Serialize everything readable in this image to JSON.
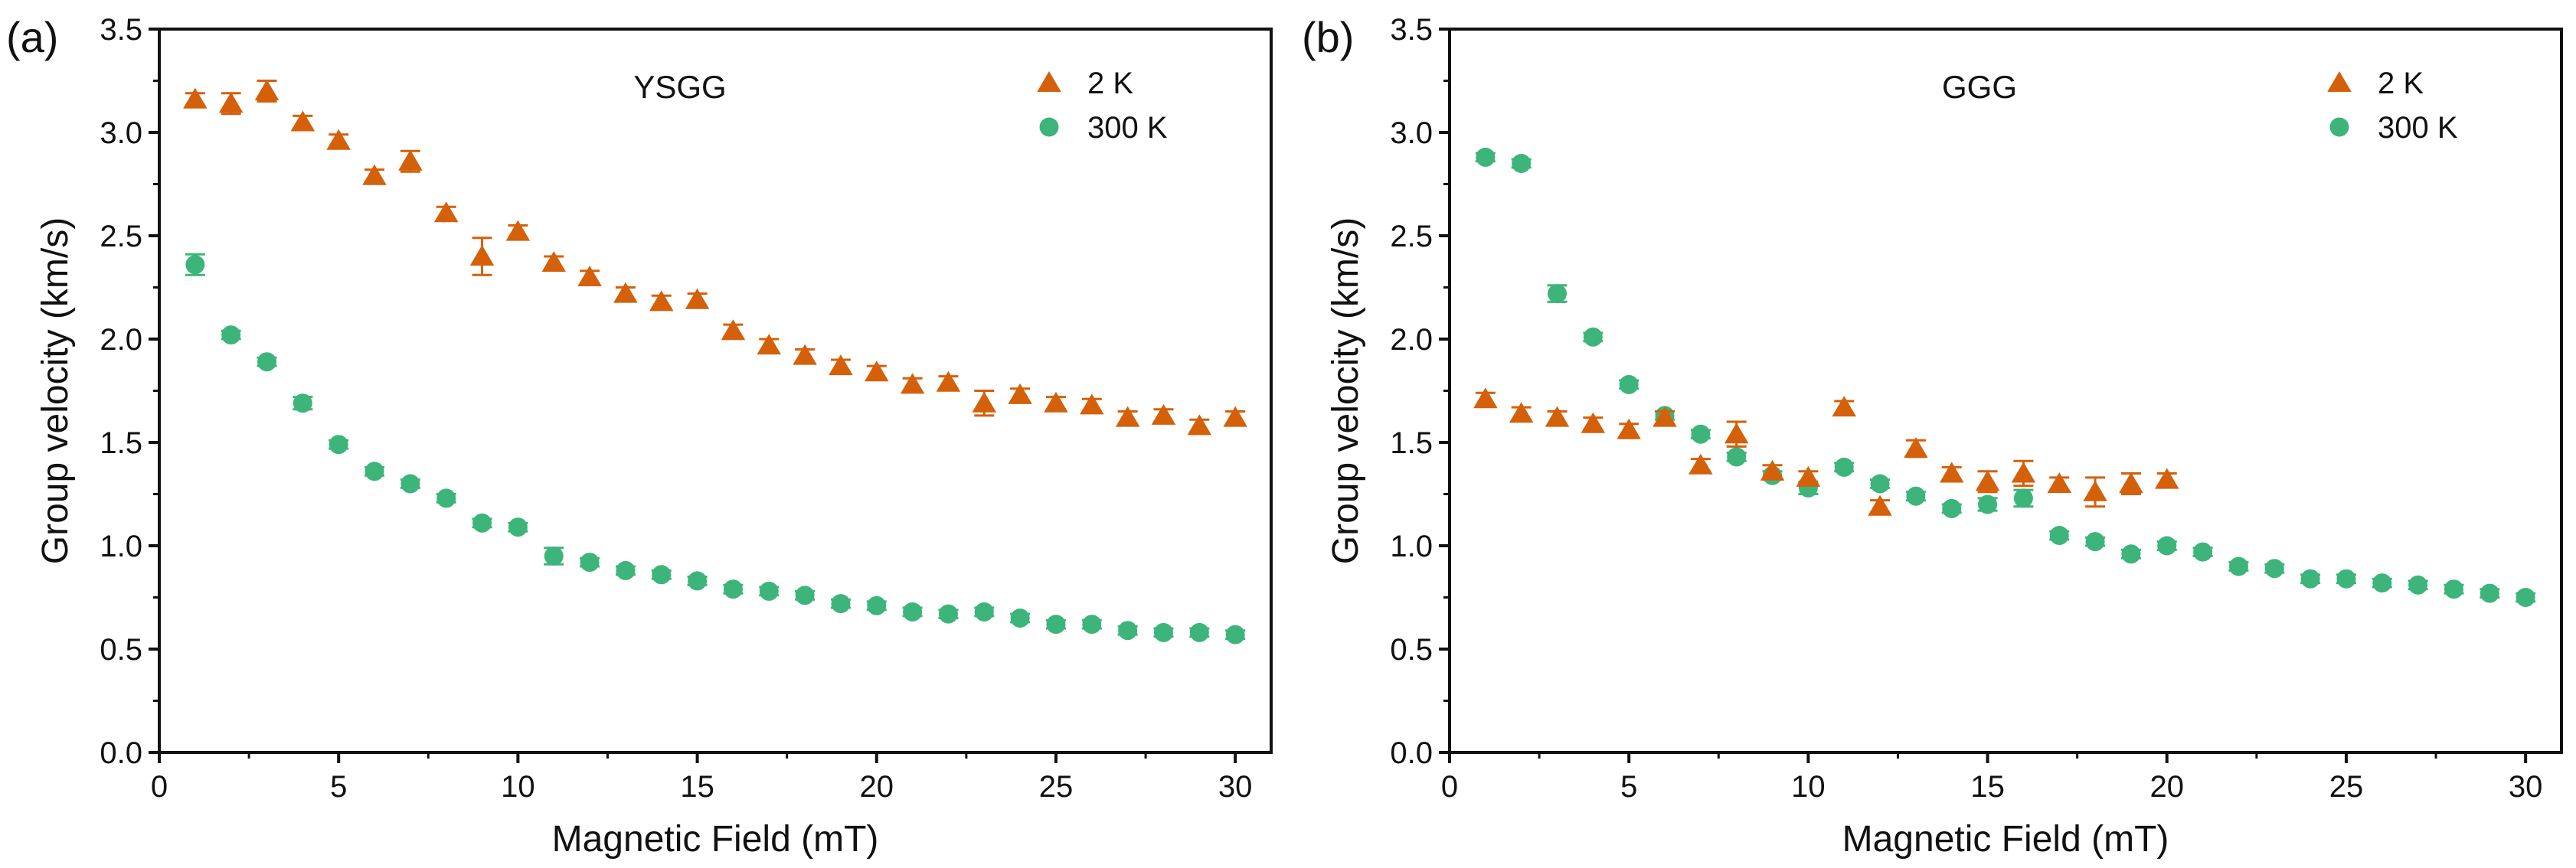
{
  "colors": {
    "orange": "#D4600A",
    "green": "#3DB57A",
    "axis": "#111111"
  },
  "chart_data": [
    {
      "type": "scatter",
      "panel_label": "(a)",
      "title": "YSGG",
      "xlabel": "Magnetic Field (mT)",
      "ylabel": "Group velocity (km/s)",
      "xlim": [
        0,
        31
      ],
      "ylim": [
        0.0,
        3.5
      ],
      "xticks": [
        "0",
        "5",
        "10",
        "15",
        "20",
        "25",
        "30"
      ],
      "yticks": [
        "0.0",
        "0.5",
        "1.0",
        "1.5",
        "2.0",
        "2.5",
        "3.0",
        "3.5"
      ],
      "legend_position": "top-right",
      "series": [
        {
          "name": "2 K",
          "marker": "triangle",
          "color": "#D4600A",
          "x": [
            1,
            2,
            3,
            4,
            5,
            6,
            7,
            8,
            9,
            10,
            11,
            12,
            13,
            14,
            15,
            16,
            17,
            18,
            19,
            20,
            21,
            22,
            23,
            24,
            25,
            26,
            27,
            28,
            29,
            30
          ],
          "y": [
            3.16,
            3.14,
            3.2,
            3.05,
            2.96,
            2.79,
            2.86,
            2.61,
            2.4,
            2.52,
            2.37,
            2.3,
            2.22,
            2.18,
            2.19,
            2.04,
            1.97,
            1.92,
            1.87,
            1.84,
            1.78,
            1.79,
            1.69,
            1.73,
            1.69,
            1.68,
            1.62,
            1.63,
            1.58,
            1.62
          ],
          "err": [
            0.03,
            0.05,
            0.05,
            0.03,
            0.03,
            0.03,
            0.05,
            0.03,
            0.09,
            0.03,
            0.03,
            0.03,
            0.03,
            0.03,
            0.03,
            0.03,
            0.03,
            0.03,
            0.03,
            0.03,
            0.03,
            0.03,
            0.06,
            0.03,
            0.03,
            0.03,
            0.03,
            0.03,
            0.03,
            0.03
          ]
        },
        {
          "name": "300 K",
          "marker": "circle",
          "color": "#3DB57A",
          "x": [
            1,
            2,
            3,
            4,
            5,
            6,
            7,
            8,
            9,
            10,
            11,
            12,
            13,
            14,
            15,
            16,
            17,
            18,
            19,
            20,
            21,
            22,
            23,
            24,
            25,
            26,
            27,
            28,
            29,
            30
          ],
          "y": [
            2.36,
            2.02,
            1.89,
            1.69,
            1.49,
            1.36,
            1.3,
            1.23,
            1.11,
            1.09,
            0.95,
            0.92,
            0.88,
            0.86,
            0.83,
            0.79,
            0.78,
            0.76,
            0.72,
            0.71,
            0.68,
            0.67,
            0.68,
            0.65,
            0.62,
            0.62,
            0.59,
            0.58,
            0.58,
            0.57
          ],
          "err": [
            0.05,
            0.02,
            0.02,
            0.03,
            0.02,
            0.02,
            0.02,
            0.02,
            0.02,
            0.02,
            0.04,
            0.02,
            0.02,
            0.02,
            0.02,
            0.02,
            0.02,
            0.02,
            0.02,
            0.02,
            0.02,
            0.02,
            0.02,
            0.02,
            0.02,
            0.02,
            0.02,
            0.02,
            0.02,
            0.02
          ]
        }
      ]
    },
    {
      "type": "scatter",
      "panel_label": "(b)",
      "title": "GGG",
      "xlabel": "Magnetic Field (mT)",
      "ylabel": "Group velocity (km/s)",
      "xlim": [
        0,
        31
      ],
      "ylim": [
        0.0,
        3.5
      ],
      "xticks": [
        "0",
        "5",
        "10",
        "15",
        "20",
        "25",
        "30"
      ],
      "yticks": [
        "0.0",
        "0.5",
        "1.0",
        "1.5",
        "2.0",
        "2.5",
        "3.0",
        "3.5"
      ],
      "legend_position": "top-right",
      "series": [
        {
          "name": "2 K",
          "marker": "triangle",
          "color": "#D4600A",
          "x": [
            1,
            2,
            3,
            4,
            5,
            6,
            7,
            8,
            9,
            10,
            11,
            12,
            13,
            14,
            15,
            16,
            17,
            18,
            19,
            20
          ],
          "y": [
            1.71,
            1.64,
            1.62,
            1.59,
            1.56,
            1.62,
            1.39,
            1.54,
            1.36,
            1.33,
            1.67,
            1.19,
            1.47,
            1.35,
            1.31,
            1.35,
            1.3,
            1.26,
            1.3,
            1.32
          ],
          "err": [
            0.03,
            0.03,
            0.03,
            0.03,
            0.03,
            0.03,
            0.03,
            0.06,
            0.03,
            0.03,
            0.03,
            0.03,
            0.04,
            0.03,
            0.05,
            0.06,
            0.03,
            0.07,
            0.05,
            0.03
          ]
        },
        {
          "name": "300 K",
          "marker": "circle",
          "color": "#3DB57A",
          "x": [
            1,
            2,
            3,
            4,
            5,
            6,
            7,
            8,
            9,
            10,
            11,
            12,
            13,
            14,
            15,
            16,
            17,
            18,
            19,
            20,
            21,
            22,
            23,
            24,
            25,
            26,
            27,
            28,
            29,
            30
          ],
          "y": [
            2.88,
            2.85,
            2.22,
            2.01,
            1.78,
            1.63,
            1.54,
            1.43,
            1.34,
            1.28,
            1.38,
            1.3,
            1.24,
            1.18,
            1.2,
            1.23,
            1.05,
            1.02,
            0.96,
            1.0,
            0.97,
            0.9,
            0.89,
            0.84,
            0.84,
            0.82,
            0.81,
            0.79,
            0.77,
            0.75
          ],
          "err": [
            0.02,
            0.02,
            0.04,
            0.02,
            0.02,
            0.02,
            0.02,
            0.02,
            0.02,
            0.03,
            0.02,
            0.02,
            0.02,
            0.02,
            0.03,
            0.04,
            0.02,
            0.02,
            0.02,
            0.02,
            0.02,
            0.02,
            0.02,
            0.02,
            0.02,
            0.02,
            0.02,
            0.02,
            0.02,
            0.02
          ]
        }
      ]
    }
  ]
}
